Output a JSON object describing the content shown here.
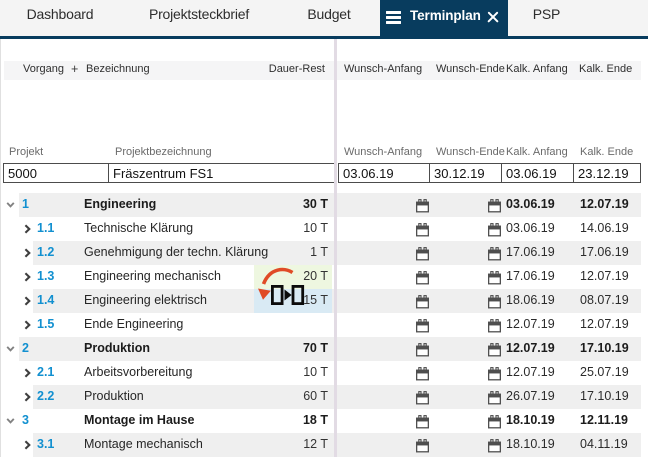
{
  "tabs": [
    {
      "label": "Dashboard",
      "active": false
    },
    {
      "label": "Projektsteckbrief",
      "active": false
    },
    {
      "label": "Budget",
      "active": false
    },
    {
      "label": "Terminplan",
      "active": true
    },
    {
      "label": "PSP",
      "active": false
    }
  ],
  "column_headers": {
    "vorgang": "Vorgang",
    "add_column": "+",
    "bezeichnung": "Bezeichnung",
    "dauer_rest": "Dauer-Rest",
    "wunsch_anfang": "Wunsch-Anfang",
    "wunsch_ende": "Wunsch-Ende",
    "kalk_anfang": "Kalk. Anfang",
    "kalk_ende": "Kalk. Ende"
  },
  "filter": {
    "projekt_label": "Projekt",
    "projekt_value": "5000",
    "projektbezeichnung_label": "Projektbezeichnung",
    "projektbezeichnung_value": "Fräszentrum FS1",
    "wunsch_anfang_label": "Wunsch-Anfang",
    "wunsch_anfang_value": "03.06.19",
    "wunsch_ende_label": "Wunsch-Ende",
    "wunsch_ende_value": "30.12.19",
    "kalk_anfang_label": "Kalk. Anfang",
    "kalk_anfang_value": "03.06.19",
    "kalk_ende_label": "Kalk. Ende",
    "kalk_ende_value": "23.12.19"
  },
  "rows": [
    {
      "num": "1",
      "name": "Engineering",
      "duration": "30 T",
      "kalk_anfang": "03.06.19",
      "kalk_ende": "12.07.19",
      "level": 0,
      "bold": true,
      "expanded": true
    },
    {
      "num": "1.1",
      "name": "Technische Klärung",
      "duration": "10 T",
      "kalk_anfang": "03.06.19",
      "kalk_ende": "14.06.19",
      "level": 1,
      "bold": false,
      "expanded": false
    },
    {
      "num": "1.2",
      "name": "Genehmigung der techn. Klärung",
      "duration": "1 T",
      "kalk_anfang": "17.06.19",
      "kalk_ende": "17.06.19",
      "level": 1,
      "bold": false,
      "expanded": false
    },
    {
      "num": "1.3",
      "name": "Engineering mechanisch",
      "duration": "20 T",
      "kalk_anfang": "17.06.19",
      "kalk_ende": "12.07.19",
      "level": 1,
      "bold": false,
      "expanded": false,
      "highlight": "green"
    },
    {
      "num": "1.4",
      "name": "Engineering elektrisch",
      "duration": "15 T",
      "kalk_anfang": "18.06.19",
      "kalk_ende": "08.07.19",
      "level": 1,
      "bold": false,
      "expanded": false,
      "highlight": "blue"
    },
    {
      "num": "1.5",
      "name": "Ende Engineering",
      "duration": "",
      "kalk_anfang": "12.07.19",
      "kalk_ende": "12.07.19",
      "level": 1,
      "bold": false,
      "expanded": false
    },
    {
      "num": "2",
      "name": "Produktion",
      "duration": "70 T",
      "kalk_anfang": "12.07.19",
      "kalk_ende": "17.10.19",
      "level": 0,
      "bold": true,
      "expanded": true
    },
    {
      "num": "2.1",
      "name": "Arbeitsvorbereitung",
      "duration": "10 T",
      "kalk_anfang": "12.07.19",
      "kalk_ende": "25.07.19",
      "level": 1,
      "bold": false,
      "expanded": false
    },
    {
      "num": "2.2",
      "name": "Produktion",
      "duration": "60 T",
      "kalk_anfang": "26.07.19",
      "kalk_ende": "17.10.19",
      "level": 1,
      "bold": false,
      "expanded": false
    },
    {
      "num": "3",
      "name": "Montage im Hause",
      "duration": "18 T",
      "kalk_anfang": "18.10.19",
      "kalk_ende": "12.11.19",
      "level": 0,
      "bold": true,
      "expanded": true
    },
    {
      "num": "3.1",
      "name": "Montage mechanisch",
      "duration": "12 T",
      "kalk_anfang": "18.10.19",
      "kalk_ende": "04.11.19",
      "level": 1,
      "bold": false,
      "expanded": false
    }
  ],
  "annotation": {
    "type": "drag-and-drop-hint",
    "from_cell": "1.3 duration (20 T)",
    "to_cell": "1.4 duration (15 T)",
    "arrow_color": "#e04b26",
    "icon_color": "#0b0b0b"
  },
  "colors": {
    "accent_navy": "#083c5e",
    "row_number_blue": "#1290d0",
    "stripe_gray": "#efefef",
    "highlight_green": "#eef7e0",
    "highlight_blue": "#d9eaf4",
    "splitter": "#e2dbe4"
  }
}
